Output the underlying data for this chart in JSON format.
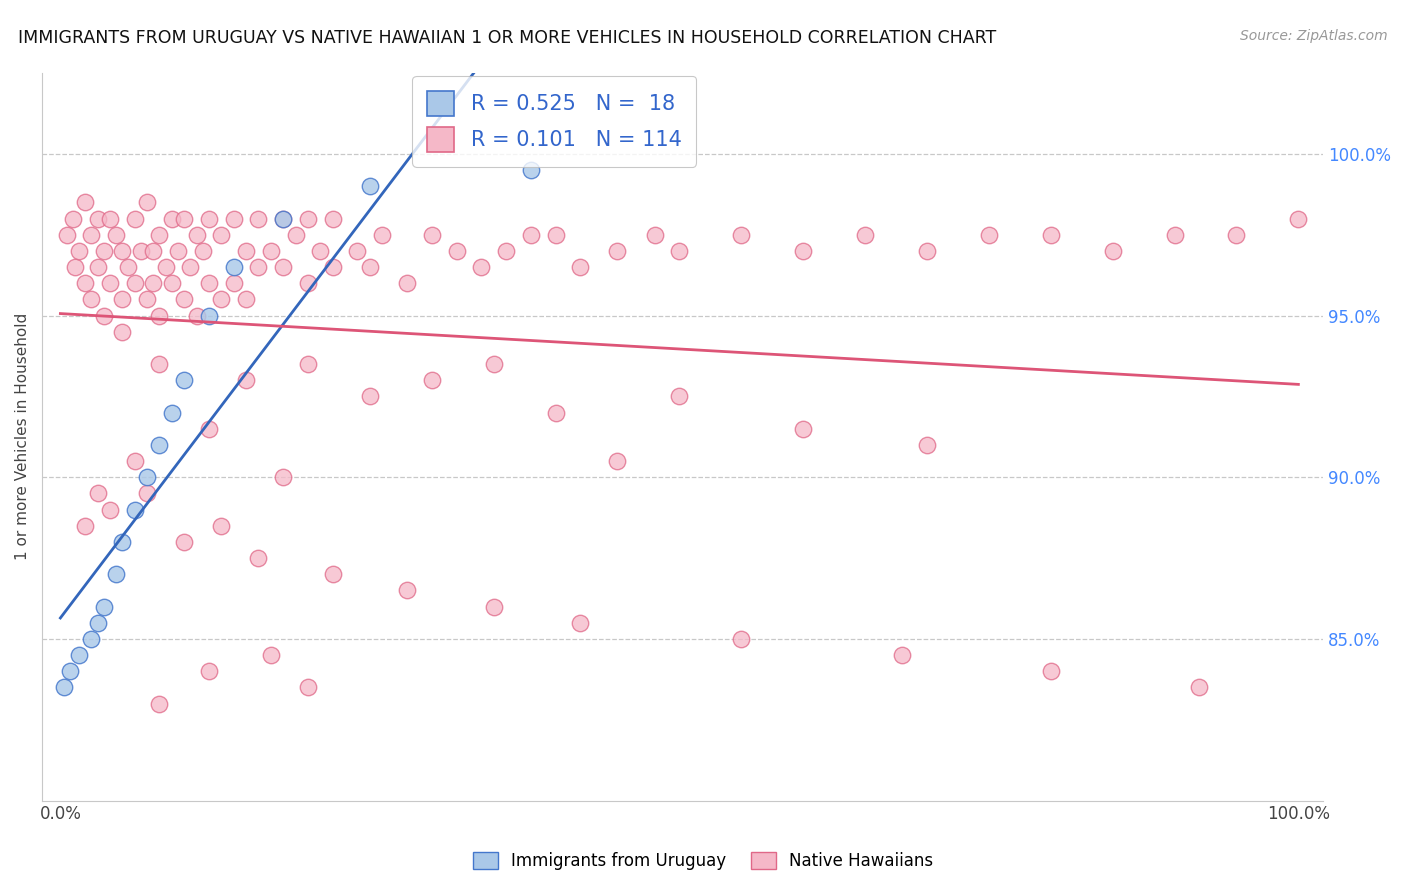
{
  "title": "IMMIGRANTS FROM URUGUAY VS NATIVE HAWAIIAN 1 OR MORE VEHICLES IN HOUSEHOLD CORRELATION CHART",
  "source": "Source: ZipAtlas.com",
  "ylabel": "1 or more Vehicles in Household",
  "legend_labels": [
    "Immigrants from Uruguay",
    "Native Hawaiians"
  ],
  "legend_r": [
    0.525,
    0.101
  ],
  "legend_n": [
    18,
    114
  ],
  "blue_face_color": "#aac8e8",
  "blue_edge_color": "#4477cc",
  "pink_face_color": "#f5b8c8",
  "pink_edge_color": "#e06888",
  "blue_line_color": "#3366bb",
  "pink_line_color": "#dd5577",
  "grid_color": "#c8c8c8",
  "right_tick_color": "#4488ff",
  "title_color": "#111111",
  "source_color": "#999999",
  "ylim": [
    80.0,
    102.5
  ],
  "xlim": [
    -1.5,
    102.0
  ],
  "yticks": [
    85.0,
    90.0,
    95.0,
    100.0
  ],
  "figsize": [
    14.06,
    8.92
  ],
  "dpi": 100,
  "blue_x": [
    0.3,
    0.8,
    1.5,
    2.5,
    3.0,
    3.5,
    4.5,
    5.0,
    6.0,
    7.0,
    8.0,
    9.0,
    10.0,
    12.0,
    14.0,
    18.0,
    25.0,
    38.0
  ],
  "blue_y": [
    83.5,
    84.0,
    84.5,
    85.0,
    85.5,
    86.0,
    87.0,
    88.0,
    89.0,
    90.0,
    91.0,
    92.0,
    93.0,
    95.0,
    96.5,
    98.0,
    99.0,
    99.5
  ],
  "pink_x": [
    0.5,
    1.0,
    1.2,
    1.5,
    2.0,
    2.0,
    2.5,
    2.5,
    3.0,
    3.0,
    3.5,
    3.5,
    4.0,
    4.0,
    4.5,
    5.0,
    5.0,
    5.5,
    6.0,
    6.0,
    6.5,
    7.0,
    7.0,
    7.5,
    7.5,
    8.0,
    8.0,
    8.5,
    9.0,
    9.0,
    9.5,
    10.0,
    10.0,
    10.5,
    11.0,
    11.0,
    11.5,
    12.0,
    12.0,
    13.0,
    13.0,
    14.0,
    14.0,
    15.0,
    15.0,
    16.0,
    16.0,
    17.0,
    18.0,
    18.0,
    19.0,
    20.0,
    20.0,
    21.0,
    22.0,
    22.0,
    24.0,
    25.0,
    26.0,
    28.0,
    30.0,
    32.0,
    34.0,
    36.0,
    38.0,
    40.0,
    42.0,
    45.0,
    48.0,
    50.0,
    55.0,
    60.0,
    65.0,
    70.0,
    75.0,
    80.0,
    85.0,
    90.0,
    95.0,
    100.0,
    5.0,
    8.0,
    15.0,
    20.0,
    25.0,
    30.0,
    35.0,
    40.0,
    50.0,
    60.0,
    70.0,
    45.0,
    12.0,
    18.0,
    6.0,
    3.0,
    2.0,
    4.0,
    7.0,
    10.0,
    13.0,
    16.0,
    22.0,
    28.0,
    35.0,
    42.0,
    55.0,
    68.0,
    80.0,
    92.0,
    17.0,
    8.0,
    12.0,
    20.0
  ],
  "pink_y": [
    97.5,
    98.0,
    96.5,
    97.0,
    98.5,
    96.0,
    97.5,
    95.5,
    98.0,
    96.5,
    97.0,
    95.0,
    98.0,
    96.0,
    97.5,
    97.0,
    95.5,
    96.5,
    98.0,
    96.0,
    97.0,
    98.5,
    95.5,
    97.0,
    96.0,
    97.5,
    95.0,
    96.5,
    98.0,
    96.0,
    97.0,
    98.0,
    95.5,
    96.5,
    97.5,
    95.0,
    97.0,
    98.0,
    96.0,
    97.5,
    95.5,
    96.0,
    98.0,
    97.0,
    95.5,
    96.5,
    98.0,
    97.0,
    96.5,
    98.0,
    97.5,
    96.0,
    98.0,
    97.0,
    96.5,
    98.0,
    97.0,
    96.5,
    97.5,
    96.0,
    97.5,
    97.0,
    96.5,
    97.0,
    97.5,
    97.5,
    96.5,
    97.0,
    97.5,
    97.0,
    97.5,
    97.0,
    97.5,
    97.0,
    97.5,
    97.5,
    97.0,
    97.5,
    97.5,
    98.0,
    94.5,
    93.5,
    93.0,
    93.5,
    92.5,
    93.0,
    93.5,
    92.0,
    92.5,
    91.5,
    91.0,
    90.5,
    91.5,
    90.0,
    90.5,
    89.5,
    88.5,
    89.0,
    89.5,
    88.0,
    88.5,
    87.5,
    87.0,
    86.5,
    86.0,
    85.5,
    85.0,
    84.5,
    84.0,
    83.5,
    84.5,
    83.0,
    84.0,
    83.5
  ]
}
